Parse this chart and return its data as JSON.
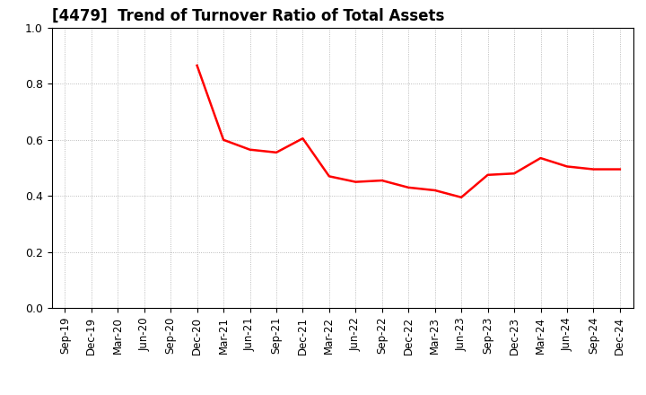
{
  "title": "[4479]  Trend of Turnover Ratio of Total Assets",
  "x_labels": [
    "Sep-19",
    "Dec-19",
    "Mar-20",
    "Jun-20",
    "Sep-20",
    "Dec-20",
    "Mar-21",
    "Jun-21",
    "Sep-21",
    "Dec-21",
    "Mar-22",
    "Jun-22",
    "Sep-22",
    "Dec-22",
    "Mar-23",
    "Jun-23",
    "Sep-23",
    "Dec-23",
    "Mar-24",
    "Jun-24",
    "Sep-24",
    "Dec-24"
  ],
  "y_values": [
    null,
    null,
    null,
    null,
    null,
    0.865,
    0.6,
    0.565,
    0.555,
    0.605,
    0.47,
    0.45,
    0.455,
    0.43,
    0.42,
    0.395,
    0.475,
    0.48,
    0.535,
    0.505,
    0.495,
    0.495
  ],
  "ylim": [
    0.0,
    1.0
  ],
  "yticks": [
    0.0,
    0.2,
    0.4,
    0.6,
    0.8,
    1.0
  ],
  "line_color": "#ff0000",
  "line_width": 1.8,
  "background_color": "#ffffff",
  "grid_color": "#aaaaaa",
  "title_fontsize": 12,
  "tick_fontsize": 8.5
}
